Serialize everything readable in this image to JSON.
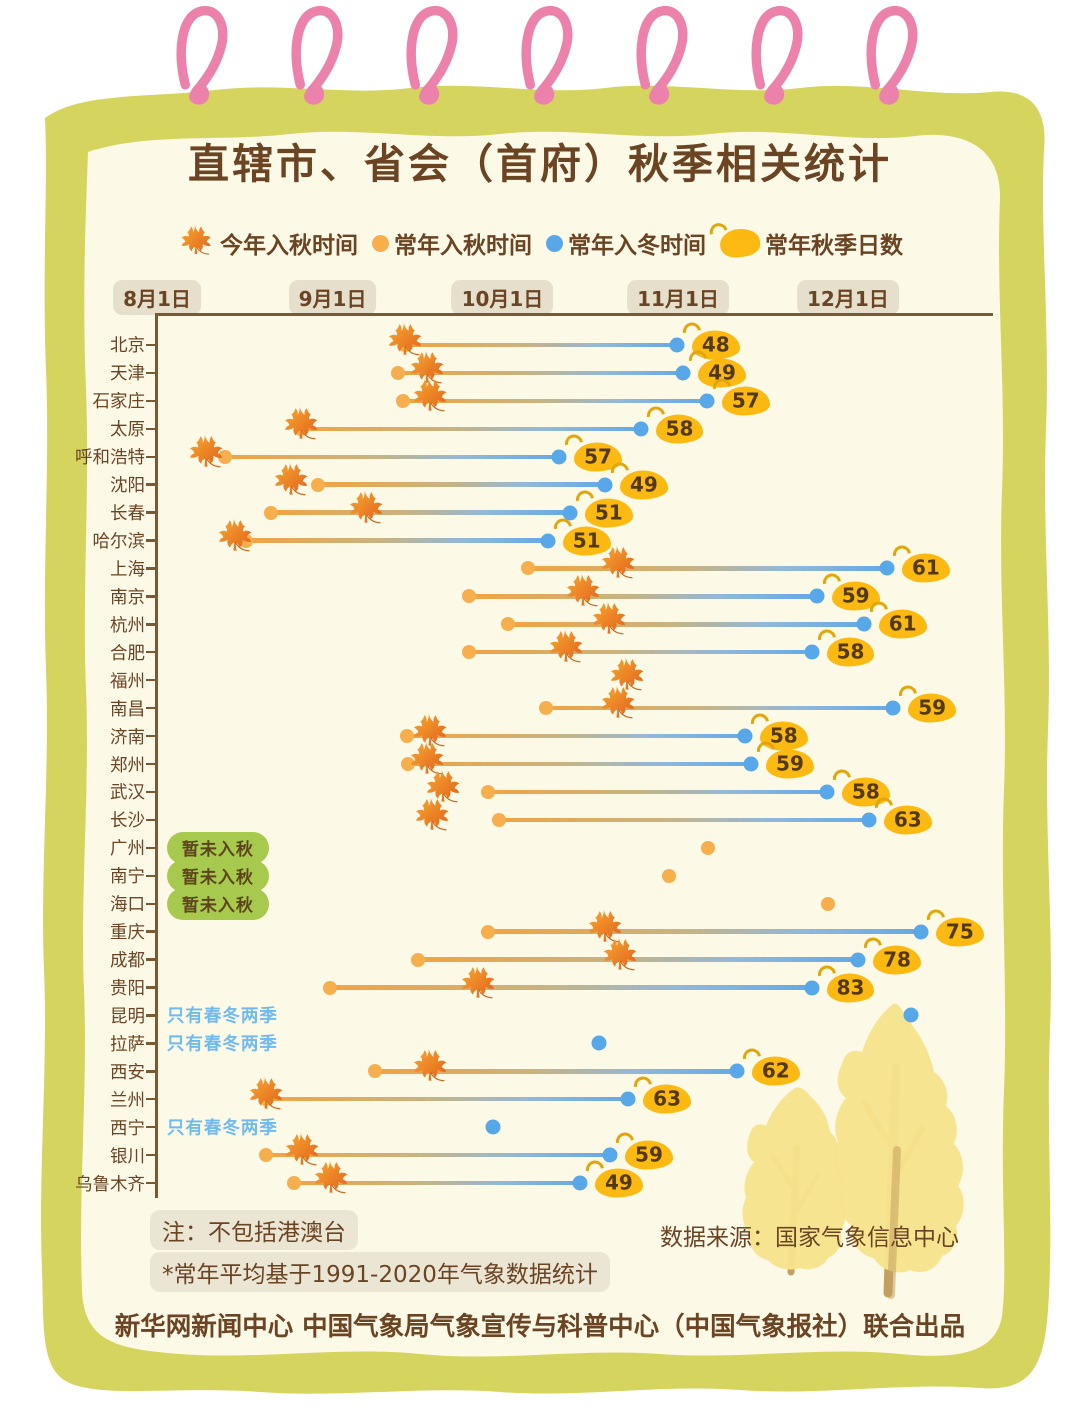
{
  "page": {
    "title": "直辖市、省会（首府）秋季相关统计",
    "notes": [
      "注：不包括港澳台",
      "*常年平均基于1991-2020年气象数据统计"
    ],
    "source": "数据来源：国家气象信息中心",
    "footer": "新华网新闻中心 中国气象局气象宣传与科普中心（中国气象报社）联合出品"
  },
  "colors": {
    "page-cream": "#FDF9E7",
    "frame-olive": "#D5D45F",
    "ring-pink": "#EC82AB",
    "text-brown": "#6B4423",
    "line-brown": "#7A5A33",
    "dot-orange": "#F7AE4C",
    "dot-blue": "#58A7E9",
    "badge-yellow": "#FBB911",
    "badge-text": "#53390E",
    "green-badge": "#A6C94E",
    "status-blue": "#6FBAF2",
    "pill-bg": "#E5DFCC",
    "note-bg": "#EBE5D4",
    "tree-yellow": "#F7E38C",
    "trunk-brown": "#C4A05F"
  },
  "chart_data": {
    "type": "dumbbell-timeline",
    "title": "直辖市、省会（首府）秋季相关统计",
    "legend": [
      {
        "icon": "maple-leaf-icon",
        "label": "今年入秋时间"
      },
      {
        "icon": "orange-dot-icon",
        "label": "常年入秋时间"
      },
      {
        "icon": "blue-dot-icon",
        "label": "常年入冬时间"
      },
      {
        "icon": "yellow-leaf-icon",
        "label": "常年秋季日数"
      }
    ],
    "x_axis": {
      "ticks": [
        "8月1日",
        "9月1日",
        "10月1日",
        "11月1日",
        "12月1日"
      ],
      "tick_day_offsets": [
        0,
        31,
        61,
        92,
        122
      ],
      "day_offset_origin": "8月1日",
      "span_days": 144.8
    },
    "cities": [
      {
        "name": "北京",
        "this_year_autumn": 43.8,
        "normal_autumn": 43.8,
        "normal_winter": 91.8,
        "autumn_days": 48
      },
      {
        "name": "天津",
        "this_year_autumn": 47.7,
        "normal_autumn": 42.6,
        "normal_winter": 92.9,
        "autumn_days": 49
      },
      {
        "name": "石家庄",
        "this_year_autumn": 48.2,
        "normal_autumn": 43.4,
        "normal_winter": 97.1,
        "autumn_days": 57
      },
      {
        "name": "太原",
        "this_year_autumn": 25.4,
        "normal_autumn": 25.4,
        "normal_winter": 85.4,
        "autumn_days": 58
      },
      {
        "name": "呼和浩特",
        "this_year_autumn": 8.7,
        "normal_autumn": 12.0,
        "normal_winter": 71.0,
        "autumn_days": 57
      },
      {
        "name": "沈阳",
        "this_year_autumn": 23.7,
        "normal_autumn": 28.4,
        "normal_winter": 79.1,
        "autumn_days": 49
      },
      {
        "name": "长春",
        "this_year_autumn": 36.9,
        "normal_autumn": 20.1,
        "normal_winter": 72.9,
        "autumn_days": 51
      },
      {
        "name": "哈尔滨",
        "this_year_autumn": 13.8,
        "normal_autumn": 15.7,
        "normal_winter": 69.0,
        "autumn_days": 51
      },
      {
        "name": "上海",
        "this_year_autumn": 81.4,
        "normal_autumn": 65.5,
        "normal_winter": 128.9,
        "autumn_days": 61
      },
      {
        "name": "南京",
        "this_year_autumn": 75.2,
        "normal_autumn": 55.1,
        "normal_winter": 116.5,
        "autumn_days": 59
      },
      {
        "name": "杭州",
        "this_year_autumn": 79.8,
        "normal_autumn": 62.0,
        "normal_winter": 124.8,
        "autumn_days": 61
      },
      {
        "name": "合肥",
        "this_year_autumn": 72.2,
        "normal_autumn": 55.1,
        "normal_winter": 115.6,
        "autumn_days": 58
      },
      {
        "name": "福州",
        "this_year_autumn": 83.0
      },
      {
        "name": "南昌",
        "this_year_autumn": 81.4,
        "normal_autumn": 68.7,
        "normal_winter": 130.0,
        "autumn_days": 59
      },
      {
        "name": "济南",
        "this_year_autumn": 48.2,
        "normal_autumn": 44.1,
        "normal_winter": 103.8,
        "autumn_days": 58
      },
      {
        "name": "郑州",
        "this_year_autumn": 47.7,
        "normal_autumn": 44.3,
        "normal_winter": 104.9,
        "autumn_days": 59
      },
      {
        "name": "武汉",
        "this_year_autumn": 50.5,
        "normal_autumn": 58.4,
        "normal_winter": 118.3,
        "autumn_days": 58
      },
      {
        "name": "长沙",
        "this_year_autumn": 48.6,
        "normal_autumn": 60.4,
        "normal_winter": 125.7,
        "autumn_days": 63
      },
      {
        "name": "广州",
        "status": "暂未入秋",
        "status_type": "badge",
        "normal_autumn": 97.3
      },
      {
        "name": "南宁",
        "status": "暂未入秋",
        "status_type": "badge",
        "normal_autumn": 90.4
      },
      {
        "name": "海口",
        "status": "暂未入秋",
        "status_type": "badge",
        "normal_autumn": 118.5
      },
      {
        "name": "重庆",
        "this_year_autumn": 79.1,
        "normal_autumn": 58.4,
        "normal_winter": 134.9,
        "autumn_days": 75
      },
      {
        "name": "成都",
        "this_year_autumn": 81.7,
        "normal_autumn": 46.1,
        "normal_winter": 123.8,
        "autumn_days": 78
      },
      {
        "name": "贵阳",
        "this_year_autumn": 56.7,
        "normal_autumn": 30.5,
        "normal_winter": 115.6,
        "autumn_days": 83
      },
      {
        "name": "昆明",
        "status": "只有春冬两季",
        "status_type": "text",
        "normal_winter": 133.1
      },
      {
        "name": "拉萨",
        "status": "只有春冬两季",
        "status_type": "text",
        "normal_winter": 78.0
      },
      {
        "name": "西安",
        "this_year_autumn": 48.2,
        "normal_autumn": 38.5,
        "normal_winter": 102.4,
        "autumn_days": 62
      },
      {
        "name": "兰州",
        "this_year_autumn": 19.2,
        "normal_autumn": 19.2,
        "normal_winter": 83.2,
        "autumn_days": 63
      },
      {
        "name": "西宁",
        "status": "只有春冬两季",
        "status_type": "text",
        "normal_winter": 59.3
      },
      {
        "name": "银川",
        "this_year_autumn": 25.6,
        "normal_autumn": 19.2,
        "normal_winter": 80.0,
        "autumn_days": 59
      },
      {
        "name": "乌鲁木齐",
        "this_year_autumn": 30.7,
        "normal_autumn": 24.2,
        "normal_winter": 74.7,
        "autumn_days": 49
      }
    ]
  }
}
